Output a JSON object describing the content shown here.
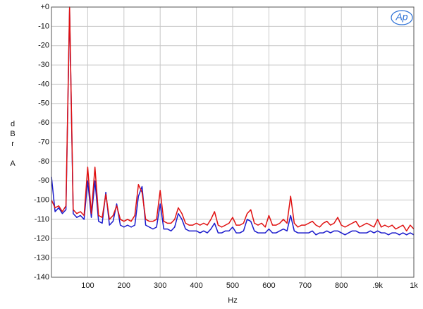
{
  "chart_data": {
    "type": "line",
    "logo": "Ap",
    "ylabel": "dBr A",
    "xlabel": "Hz",
    "xlim": [
      0,
      1000
    ],
    "ylim": [
      -140,
      0
    ],
    "grid": true,
    "xticks": [
      100,
      200,
      300,
      400,
      500,
      600,
      700,
      800,
      {
        "value": 900,
        "label": ".9k"
      },
      {
        "value": 1000,
        "label": "1k"
      }
    ],
    "yticks": [
      {
        "value": 0,
        "label": "+0"
      },
      -10,
      -20,
      -30,
      -40,
      -50,
      -60,
      -70,
      -80,
      -90,
      -100,
      -110,
      -120,
      -130,
      -140
    ],
    "x": [
      0,
      10,
      20,
      30,
      40,
      50,
      60,
      70,
      80,
      90,
      100,
      110,
      120,
      130,
      140,
      150,
      160,
      170,
      180,
      190,
      200,
      210,
      220,
      230,
      240,
      250,
      260,
      270,
      280,
      290,
      300,
      310,
      320,
      330,
      340,
      350,
      360,
      370,
      380,
      390,
      400,
      410,
      420,
      430,
      440,
      450,
      460,
      470,
      480,
      490,
      500,
      510,
      520,
      530,
      540,
      550,
      560,
      570,
      580,
      590,
      600,
      610,
      620,
      630,
      640,
      650,
      660,
      670,
      680,
      690,
      700,
      710,
      720,
      730,
      740,
      750,
      760,
      770,
      780,
      790,
      800,
      810,
      820,
      830,
      840,
      850,
      860,
      870,
      880,
      890,
      900,
      910,
      920,
      930,
      940,
      950,
      960,
      970,
      980,
      990,
      1000
    ],
    "series": [
      {
        "color": "#1a1acc",
        "values": [
          -88,
          -106,
          -104,
          -107,
          -105,
          -1,
          -107,
          -109,
          -108,
          -110,
          -90,
          -109,
          -90,
          -111,
          -112,
          -96,
          -113,
          -111,
          -102,
          -113,
          -114,
          -113,
          -114,
          -113,
          -98,
          -93,
          -113,
          -114,
          -115,
          -114,
          -102,
          -115,
          -115,
          -116,
          -114,
          -107,
          -110,
          -115,
          -116,
          -116,
          -116,
          -117,
          -116,
          -117,
          -115,
          -112,
          -117,
          -117,
          -116,
          -116,
          -114,
          -117,
          -117,
          -116,
          -110,
          -111,
          -116,
          -117,
          -117,
          -117,
          -115,
          -117,
          -117,
          -116,
          -115,
          -116,
          -108,
          -116,
          -117,
          -117,
          -117,
          -117,
          -116,
          -118,
          -117,
          -117,
          -116,
          -117,
          -116,
          -116,
          -117,
          -118,
          -117,
          -116,
          -116,
          -117,
          -117,
          -117,
          -116,
          -117,
          -116,
          -117,
          -117,
          -118,
          -117,
          -117,
          -118,
          -117,
          -118,
          -117,
          -118
        ]
      },
      {
        "color": "#e01010",
        "values": [
          -100,
          -104,
          -103,
          -106,
          -103,
          0,
          -105,
          -107,
          -106,
          -108,
          -83,
          -107,
          -83,
          -108,
          -109,
          -97,
          -110,
          -108,
          -103,
          -110,
          -111,
          -110,
          -111,
          -108,
          -92,
          -96,
          -110,
          -111,
          -111,
          -110,
          -95,
          -111,
          -112,
          -112,
          -110,
          -104,
          -107,
          -112,
          -113,
          -113,
          -112,
          -113,
          -112,
          -113,
          -110,
          -106,
          -113,
          -114,
          -113,
          -112,
          -109,
          -113,
          -113,
          -112,
          -107,
          -105,
          -112,
          -113,
          -112,
          -114,
          -108,
          -113,
          -113,
          -112,
          -110,
          -112,
          -98,
          -112,
          -114,
          -113,
          -113,
          -112,
          -111,
          -113,
          -114,
          -112,
          -111,
          -113,
          -112,
          -109,
          -113,
          -114,
          -113,
          -112,
          -111,
          -114,
          -113,
          -112,
          -113,
          -114,
          -110,
          -114,
          -113,
          -114,
          -113,
          -115,
          -114,
          -113,
          -116,
          -113,
          -115
        ]
      }
    ]
  }
}
